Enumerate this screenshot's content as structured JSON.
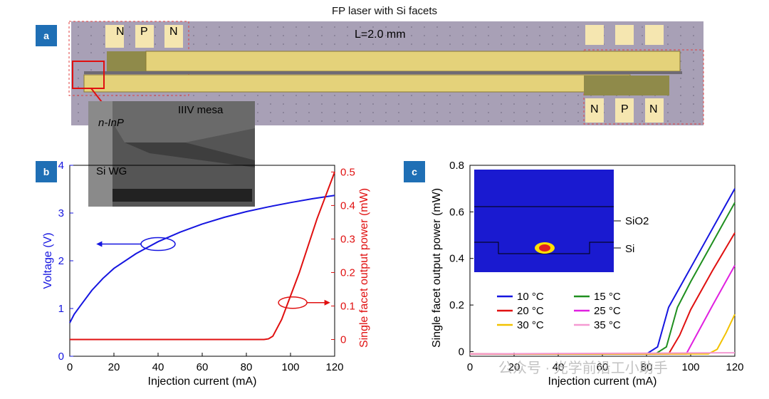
{
  "figure_title": "FP laser with Si facets",
  "panels": {
    "a": {
      "tag": "a",
      "length_label": "L=2.0 mm",
      "pads_top_left": [
        "N",
        "P",
        "N"
      ],
      "pads_bottom_right": [
        "N",
        "P",
        "N"
      ],
      "inset_labels": {
        "ninp": "n-InP",
        "mesa": "IIIV mesa",
        "wg": "Si WG"
      }
    },
    "b": {
      "tag": "b"
    },
    "c": {
      "tag": "c",
      "inset_labels": {
        "sio2": "SiO2",
        "si": "Si"
      }
    }
  },
  "watermark": "公众号 · 光学前沿工小助手",
  "colors": {
    "tag_bg": "#1f6fb5",
    "blue": "#1515e0",
    "red": "#e01010"
  },
  "chart_data": [
    {
      "id": "b",
      "type": "line",
      "xlabel": "Injection current (mA)",
      "ylabel_left": "Voltage (V)",
      "ylabel_right": "Single facet output power (mW)",
      "xlim": [
        0,
        120
      ],
      "ylim_left": [
        0,
        4
      ],
      "ylim_right": [
        -0.05,
        0.52
      ],
      "xticks": [
        0,
        20,
        40,
        60,
        80,
        100,
        120
      ],
      "yticks_left": [
        0,
        1,
        2,
        3,
        4
      ],
      "yticks_right": [
        0,
        0.1,
        0.2,
        0.3,
        0.4,
        0.5
      ],
      "series": [
        {
          "name": "Voltage",
          "axis": "left",
          "color": "#1515e0",
          "x": [
            0,
            2,
            5,
            10,
            15,
            20,
            30,
            40,
            50,
            60,
            70,
            80,
            90,
            100,
            110,
            120
          ],
          "y": [
            0.7,
            0.88,
            1.07,
            1.38,
            1.63,
            1.84,
            2.15,
            2.4,
            2.6,
            2.77,
            2.91,
            3.03,
            3.13,
            3.22,
            3.3,
            3.37
          ]
        },
        {
          "name": "Single facet output power",
          "axis": "right",
          "color": "#e01010",
          "x": [
            0,
            10,
            20,
            30,
            40,
            50,
            60,
            70,
            80,
            88,
            90,
            92,
            96,
            100,
            104,
            108,
            112,
            116,
            120
          ],
          "y": [
            0.0,
            0.0,
            0.0,
            0.0,
            0.0,
            0.0,
            0.0,
            0.0,
            0.0,
            0.0,
            0.002,
            0.01,
            0.06,
            0.13,
            0.2,
            0.28,
            0.36,
            0.43,
            0.5
          ]
        }
      ],
      "annotations": [
        "arrow-left-to-voltage-axis",
        "arrow-right-to-power-axis"
      ]
    },
    {
      "id": "c",
      "type": "line",
      "xlabel": "Injection current (mA)",
      "ylabel": "Single facet output power (mW)",
      "xlim": [
        0,
        120
      ],
      "ylim": [
        -0.02,
        0.8
      ],
      "xticks": [
        0,
        20,
        40,
        60,
        80,
        100,
        120
      ],
      "yticks": [
        0,
        0.2,
        0.4,
        0.6,
        0.8
      ],
      "series": [
        {
          "name": "10 °C",
          "color": "#1515e0",
          "x": [
            0,
            80,
            85,
            90,
            100,
            110,
            120
          ],
          "y": [
            -0.01,
            -0.01,
            0.02,
            0.19,
            0.36,
            0.53,
            0.7
          ]
        },
        {
          "name": "15 °C",
          "color": "#1f8f1f",
          "x": [
            0,
            84,
            89,
            94,
            100,
            110,
            120
          ],
          "y": [
            -0.01,
            -0.01,
            0.02,
            0.19,
            0.3,
            0.47,
            0.64
          ]
        },
        {
          "name": "20 °C",
          "color": "#e01010",
          "x": [
            0,
            90,
            95,
            100,
            110,
            120
          ],
          "y": [
            -0.01,
            -0.01,
            0.07,
            0.18,
            0.35,
            0.51
          ]
        },
        {
          "name": "25 °C",
          "color": "#e020e0",
          "x": [
            0,
            98,
            102,
            110,
            120
          ],
          "y": [
            -0.01,
            -0.01,
            0.06,
            0.2,
            0.37
          ]
        },
        {
          "name": "30 °C",
          "color": "#f2c200",
          "x": [
            0,
            108,
            112,
            116,
            120
          ],
          "y": [
            -0.01,
            -0.01,
            0.01,
            0.08,
            0.16
          ]
        },
        {
          "name": "35 °C",
          "color": "#f59ad2",
          "x": [
            0,
            120
          ],
          "y": [
            -0.01,
            -0.005
          ]
        }
      ],
      "legend_position": "lower-left"
    }
  ]
}
